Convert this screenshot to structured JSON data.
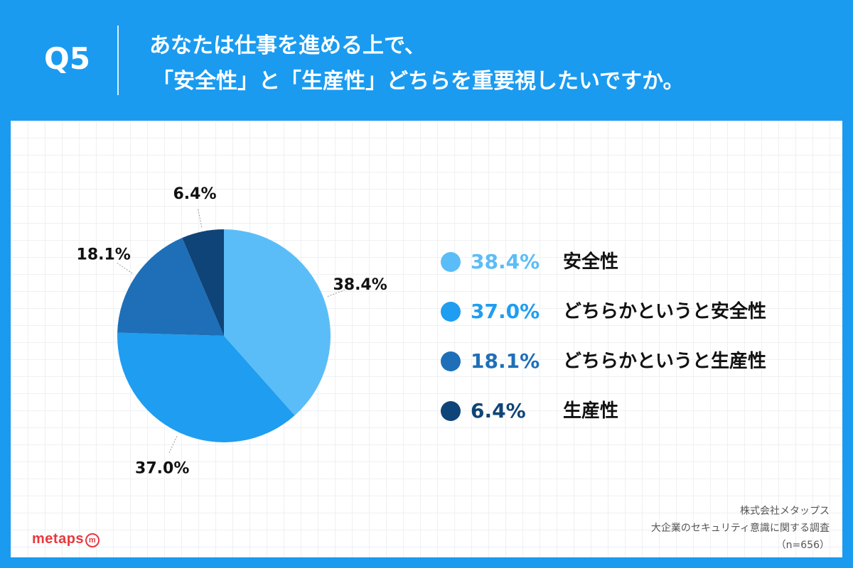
{
  "header": {
    "qnum": "Q5",
    "question_line1": "あなたは仕事を進める上で、",
    "question_line2": "「安全性」と「生産性」どちらを重要視したいですか。"
  },
  "chart_data": {
    "type": "pie",
    "title": "",
    "slices": [
      {
        "label": "安全性",
        "value": 38.4,
        "display": "38.4%",
        "color": "#5bbdf7"
      },
      {
        "label": "どちらかというと安全性",
        "value": 37.0,
        "display": "37.0%",
        "color": "#1f9df0"
      },
      {
        "label": "どちらかというと生産性",
        "value": 18.1,
        "display": "18.1%",
        "color": "#1e6fb7"
      },
      {
        "label": "生産性",
        "value": 6.4,
        "display": "6.4%",
        "color": "#0f4478"
      }
    ],
    "legend_position": "right"
  },
  "logo": {
    "text": "metaps",
    "mark": "m"
  },
  "source": {
    "company": "株式会社メタップス",
    "survey": "大企業のセキュリティ意識に関する調査",
    "sample": "（n=656）"
  }
}
